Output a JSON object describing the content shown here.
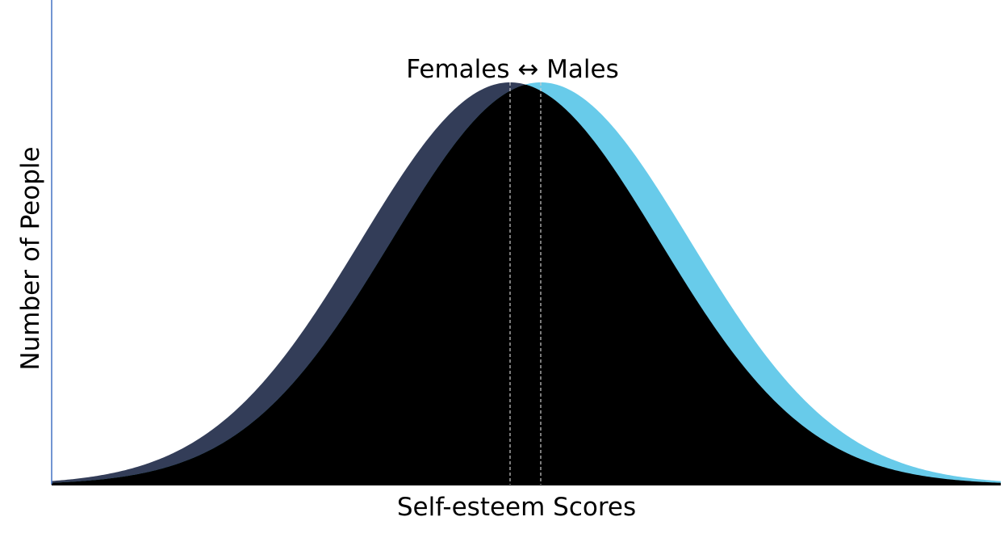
{
  "labels": {
    "comparison": "Females ↔ Males",
    "y_axis": "Number of People",
    "x_axis": "Self-esteem Scores"
  }
}
